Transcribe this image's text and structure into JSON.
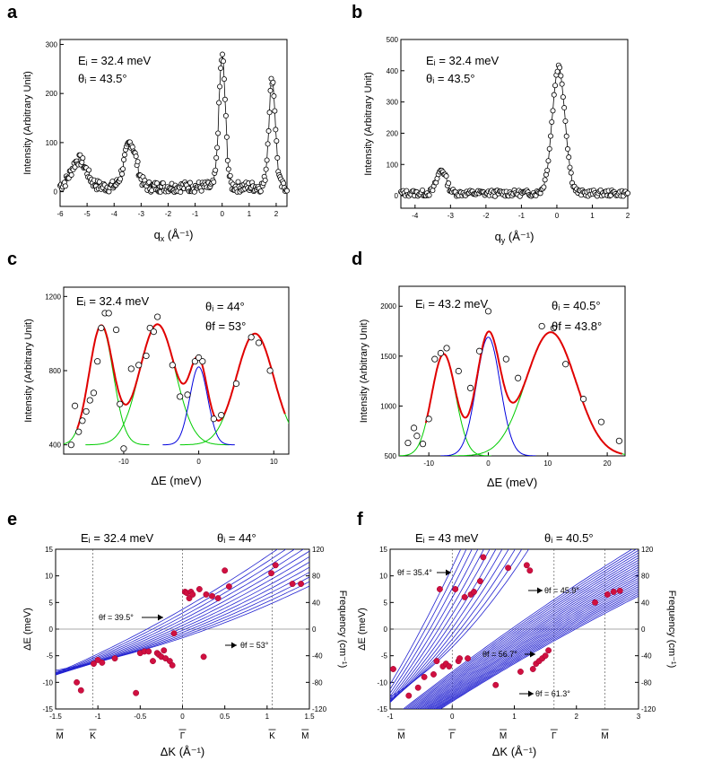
{
  "chart_data": [
    {
      "id": "a",
      "type": "scatter",
      "letter": "a",
      "ylabel": "Intensity (Arbitrary Unit)",
      "xlabel": "q",
      "xlabel_sub": "x",
      "xlabel_unit": "(Å⁻¹)",
      "xlim": [
        -6,
        2.4
      ],
      "ylim": [
        -30,
        310
      ],
      "xticks": [
        -6,
        -5,
        -4,
        -3,
        -2,
        -1,
        0,
        1,
        2
      ],
      "yticks": [
        0,
        100,
        200,
        300
      ],
      "annotations": [
        "Eᵢ = 32.4 meV",
        "θᵢ = 43.5°"
      ],
      "peaks": [
        {
          "center": -5.3,
          "height": 55,
          "width": 0.28
        },
        {
          "center": -3.4,
          "height": 90,
          "width": 0.22
        },
        {
          "center": 0.0,
          "height": 265,
          "width": 0.12
        },
        {
          "center": 1.85,
          "height": 220,
          "width": 0.12
        }
      ],
      "baseline": 10
    },
    {
      "id": "b",
      "type": "scatter",
      "letter": "b",
      "ylabel": "Intensity (Arbitrary Unit)",
      "xlabel": "q",
      "xlabel_sub": "y",
      "xlabel_unit": "(Å⁻¹)",
      "xlim": [
        -4.4,
        2
      ],
      "ylim": [
        -40,
        500
      ],
      "xticks": [
        -4,
        -3,
        -2,
        -1,
        0,
        1,
        2
      ],
      "yticks": [
        0,
        100,
        200,
        300,
        400,
        500
      ],
      "annotations": [
        "Eᵢ = 32.4 meV",
        "θᵢ = 43.5°"
      ],
      "peaks": [
        {
          "center": -3.25,
          "height": 75,
          "width": 0.13
        },
        {
          "center": 0.05,
          "height": 405,
          "width": 0.18
        }
      ],
      "baseline": 8
    },
    {
      "id": "c",
      "type": "line",
      "letter": "c",
      "ylabel": "Intensity (Arbitrary Unit)",
      "xlabel": "ΔE (meV)",
      "xlim": [
        -18,
        12
      ],
      "ylim": [
        350,
        1250
      ],
      "xticks": [
        -10,
        0,
        10
      ],
      "yticks": [
        400,
        800,
        1200
      ],
      "annotations": [
        "Eᵢ = 32.4 meV",
        "θᵢ = 44°",
        "θf = 53°"
      ],
      "base": 400,
      "components": [
        {
          "center": -13,
          "height": 640,
          "width": 1.6
        },
        {
          "center": -5.5,
          "height": 650,
          "width": 2.4
        },
        {
          "center": 0,
          "height": 420,
          "width": 1.2
        },
        {
          "center": 7.5,
          "height": 600,
          "width": 2.5
        }
      ],
      "component_colors": [
        "#00cc00",
        "#00cc00",
        "#0000dd",
        "#00cc00"
      ],
      "points_x": [
        -17,
        -16.5,
        -16,
        -15.5,
        -15,
        -14.5,
        -14,
        -13.5,
        -13,
        -12.5,
        -12,
        -11,
        -10.5,
        -10,
        -9,
        -8,
        -7,
        -6.5,
        -6,
        -5.5,
        -3.5,
        -2.5,
        -1.5,
        -0.5,
        0,
        0.5,
        2,
        3,
        5,
        7,
        8,
        9.5
      ],
      "points_y": [
        400,
        610,
        470,
        530,
        580,
        640,
        680,
        850,
        1030,
        1110,
        1110,
        1020,
        620,
        380,
        810,
        830,
        880,
        1030,
        1010,
        1090,
        830,
        660,
        670,
        850,
        870,
        850,
        540,
        560,
        730,
        980,
        950,
        800
      ]
    },
    {
      "id": "d",
      "type": "line",
      "letter": "d",
      "ylabel": "Intensity (Arbitrary Unit)",
      "xlabel": "ΔE (meV)",
      "xlim": [
        -15,
        23
      ],
      "ylim": [
        500,
        2200
      ],
      "xticks": [
        -10,
        0,
        10,
        20
      ],
      "yticks": [
        500,
        1000,
        1500,
        2000
      ],
      "annotations": [
        "Eᵢ = 43.2 meV",
        "θᵢ = 40.5°",
        "θf = 43.8°"
      ],
      "base": 500,
      "components": [
        {
          "center": -7.5,
          "height": 1020,
          "width": 2.0
        },
        {
          "center": 0,
          "height": 1190,
          "width": 2.0
        },
        {
          "center": 10.5,
          "height": 1240,
          "width": 4.2
        }
      ],
      "component_colors": [
        "#00cc00",
        "#0000dd",
        "#00cc00"
      ],
      "points_x": [
        -13.5,
        -12.5,
        -12,
        -11,
        -10,
        -9,
        -8,
        -7,
        -5,
        -3,
        -1.5,
        0,
        3,
        5,
        9,
        11,
        13,
        16,
        19,
        22
      ],
      "points_y": [
        630,
        780,
        700,
        620,
        870,
        1470,
        1530,
        1580,
        1350,
        1180,
        1550,
        1950,
        1470,
        1280,
        1800,
        1780,
        1420,
        1070,
        840,
        650
      ]
    },
    {
      "id": "e",
      "type": "scatter",
      "letter": "e",
      "ylabel": "ΔE (meV)",
      "ylabel_right": "Frequency (cm⁻¹)",
      "xlabel": "ΔK (Å⁻¹)",
      "xlim": [
        -1.5,
        1.5
      ],
      "ylim": [
        -15,
        15
      ],
      "xticks": [
        -1.5,
        -1,
        -0.5,
        0,
        0.5,
        1,
        1.5
      ],
      "yticks": [
        -15,
        -10,
        -5,
        0,
        5,
        10,
        15
      ],
      "yticks_right": [
        -120,
        -80,
        -40,
        0,
        40,
        80,
        120
      ],
      "sym_labels": [
        "M",
        "K",
        "Γ",
        "K",
        "M"
      ],
      "sym_x": [
        -1.45,
        -1.06,
        0,
        1.06,
        1.45
      ],
      "vlines": [
        -1.06,
        0,
        1.06
      ],
      "annotations": [
        "Eᵢ = 32.4 meV",
        "θᵢ = 44°"
      ],
      "scan_labels": [
        "θf = 39.5°",
        "θf = 53°"
      ],
      "points_x": [
        -1.25,
        -1.2,
        -1.05,
        -1.0,
        -0.95,
        -0.8,
        -0.55,
        -0.5,
        -0.45,
        -0.4,
        -0.35,
        -0.3,
        -0.28,
        -0.25,
        -0.22,
        -0.2,
        -0.15,
        -0.12,
        -0.1,
        0.03,
        0.05,
        0.08,
        0.1,
        0.12,
        0.2,
        0.25,
        0.28,
        0.35,
        0.42,
        0.5,
        0.55,
        1.05,
        1.1,
        1.3,
        1.4
      ],
      "points_y": [
        -10,
        -11.5,
        -6.5,
        -5.8,
        -6.3,
        -5.5,
        -12,
        -4.5,
        -4.2,
        -4.2,
        -6,
        -4.5,
        -4.8,
        -5.2,
        -4,
        -5.5,
        -6,
        -6.8,
        -0.8,
        7,
        6.8,
        5.8,
        7,
        6.5,
        7.5,
        -5.2,
        6.5,
        6.2,
        5.8,
        11,
        8,
        10.5,
        12,
        8.5,
        8.5
      ]
    },
    {
      "id": "f",
      "type": "scatter",
      "letter": "f",
      "ylabel": "ΔE (meV)",
      "ylabel_right": "Frequency (cm⁻¹)",
      "xlabel": "ΔK (Å⁻¹)",
      "xlim": [
        -1,
        3
      ],
      "ylim": [
        -15,
        15
      ],
      "xticks": [
        -1,
        0,
        1,
        2,
        3
      ],
      "yticks": [
        -15,
        -10,
        -5,
        0,
        5,
        10,
        15
      ],
      "yticks_right": [
        -120,
        -80,
        -40,
        0,
        40,
        80,
        120
      ],
      "sym_labels": [
        "M",
        "Γ",
        "M",
        "Γ",
        "M"
      ],
      "sym_x": [
        -0.82,
        0.0,
        0.82,
        1.64,
        2.46
      ],
      "vlines": [
        0.0,
        1.64,
        2.46
      ],
      "annotations": [
        "Eᵢ = 43  meV",
        "θᵢ = 40.5°"
      ],
      "scan_labels": [
        "θf = 35.4°",
        "θf = 45.9°",
        "θf = 56.7°",
        "θf = 61.3°"
      ],
      "points_x": [
        -0.95,
        -0.7,
        -0.55,
        -0.45,
        -0.3,
        -0.25,
        -0.2,
        -0.15,
        -0.1,
        -0.05,
        0.05,
        0.1,
        0.12,
        0.2,
        0.25,
        0.3,
        0.35,
        0.45,
        0.5,
        0.7,
        0.9,
        1.1,
        1.2,
        1.25,
        1.3,
        1.35,
        1.4,
        1.45,
        1.5,
        1.55,
        2.3,
        2.5,
        2.6,
        2.7
      ],
      "points_y": [
        -7.5,
        -12.5,
        -11,
        -9,
        -8.5,
        -6,
        7.5,
        -7,
        -6.5,
        -7,
        7.5,
        -6,
        -5.5,
        6,
        -5.5,
        6.5,
        7,
        9,
        13.5,
        -10.5,
        11.5,
        -8,
        12,
        11,
        -7.5,
        -6.5,
        -6,
        -5.5,
        -5,
        -4,
        5,
        6.5,
        7,
        7.2
      ]
    }
  ]
}
